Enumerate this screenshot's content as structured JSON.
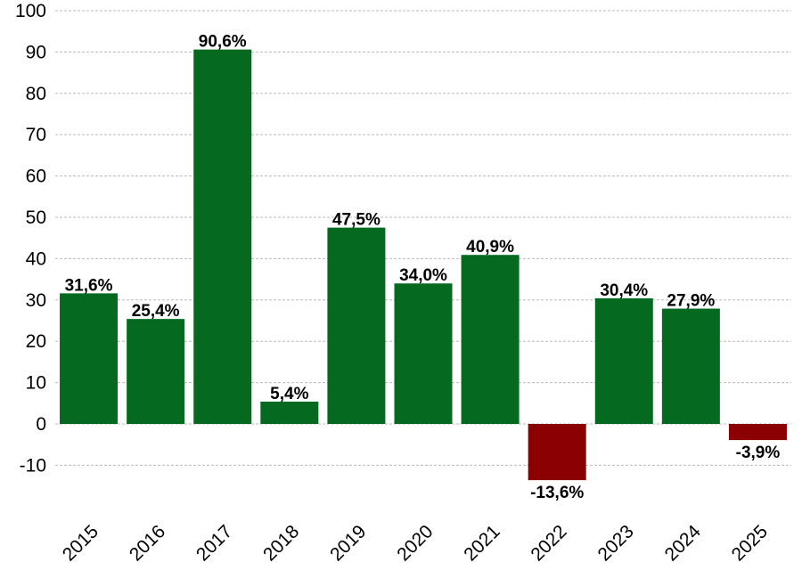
{
  "chart_data": {
    "type": "bar",
    "categories": [
      "2015",
      "2016",
      "2017",
      "2018",
      "2019",
      "2020",
      "2021",
      "2022",
      "2023",
      "2024",
      "2025"
    ],
    "values": [
      31.6,
      25.4,
      90.6,
      5.4,
      47.5,
      34.0,
      40.9,
      -13.6,
      30.4,
      27.9,
      -3.9
    ],
    "data_labels": [
      "31,6%",
      "25,4%",
      "90,6%",
      "5,4%",
      "47,5%",
      "34,0%",
      "40,9%",
      "-13,6%",
      "30,4%",
      "27,9%",
      "-3,9%"
    ],
    "yticks": [
      "-10",
      "0",
      "10",
      "20",
      "30",
      "40",
      "50",
      "60",
      "70",
      "80",
      "90",
      "100"
    ],
    "ytick_values": [
      -10,
      0,
      10,
      20,
      30,
      40,
      50,
      60,
      70,
      80,
      90,
      100
    ],
    "ylim": [
      -15,
      100
    ],
    "grid": true,
    "title": "",
    "xlabel": "",
    "ylabel": "",
    "colors": {
      "positive": "#056a1f",
      "negative": "#8b0000",
      "grid": "#bbbbbb",
      "text": "#000000"
    }
  }
}
